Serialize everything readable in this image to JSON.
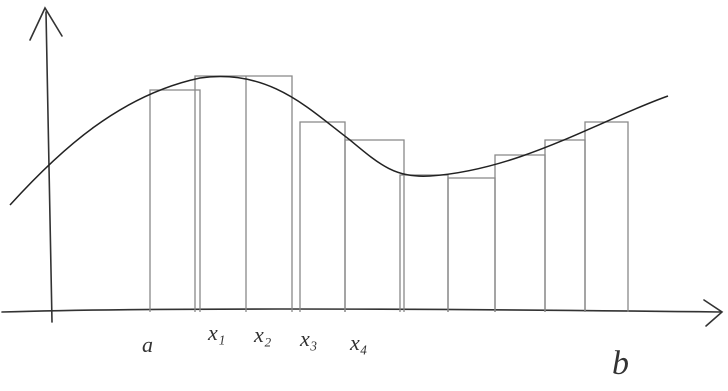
{
  "labels": [
    "a",
    "x₁",
    "x₂",
    "x₃",
    "x₄",
    "b"
  ]
}
